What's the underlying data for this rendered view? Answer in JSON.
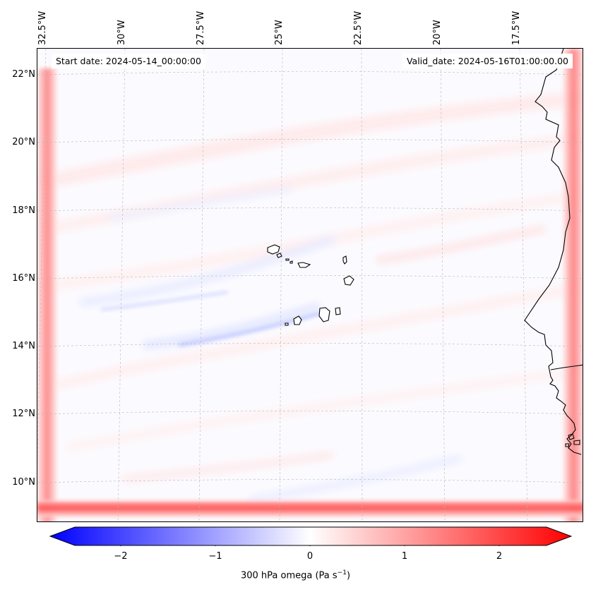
{
  "map": {
    "start_date": "Start date: 2024-05-14_00:00:00",
    "valid_date": "Valid_date: 2024-05-16T01:00:00.00",
    "lat_labels": [
      "22°N",
      "20°N",
      "18°N",
      "16°N",
      "14°N",
      "12°N",
      "10°N"
    ],
    "lon_labels": [
      "32.5°W",
      "30°W",
      "27.5°W",
      "25°W",
      "22.5°W",
      "20°W",
      "17.5°W"
    ],
    "features": [
      "cabo-verde-islands",
      "west-africa-coastline"
    ]
  },
  "colorbar": {
    "label_main": "300 hPa omega (Pa s",
    "label_exp": "−1",
    "label_end": ")",
    "ticks": [
      "−2",
      "−1",
      "0",
      "1",
      "2"
    ],
    "range": [
      -2.6,
      2.6
    ],
    "colormap": [
      "#0000ff",
      "#ffffff",
      "#ff0000"
    ]
  },
  "colors": {
    "positive": "#ff0000",
    "negative": "#0000ff",
    "neutral": "#ffffff"
  }
}
